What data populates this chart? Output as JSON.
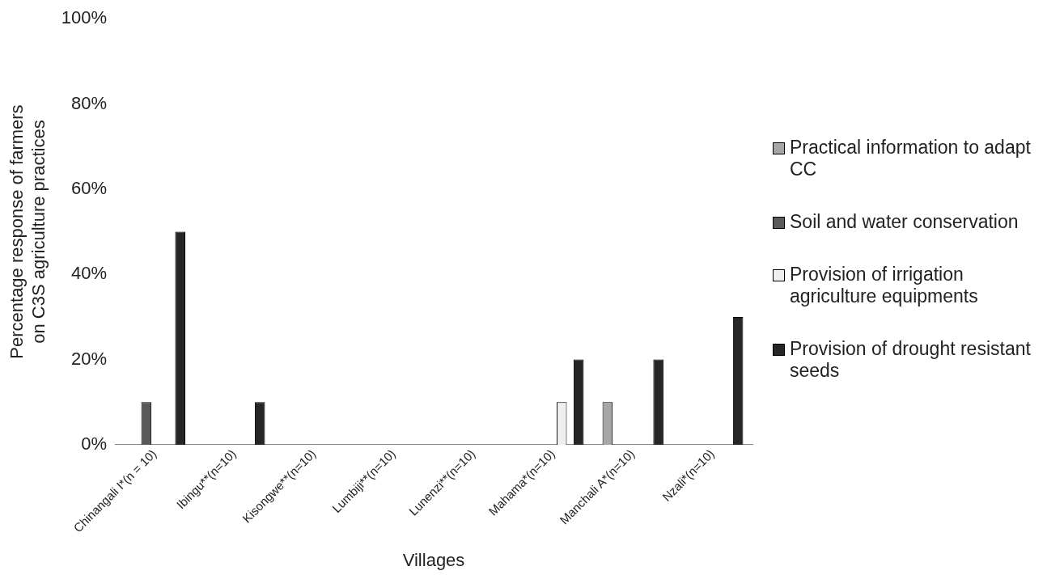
{
  "chart_data": {
    "type": "bar",
    "xlabel": "Villages",
    "ylabel": "Percentage response of farmers on C3S agriculture practices",
    "categories": [
      "Chinangali I*(n = 10)",
      "Ibingu**(n=10)",
      "Kisongwe**(n=10)",
      "Lumbiji**(n=10)",
      "Lunenzi**(n=10)",
      "Mahama*(n=10)",
      "Manchali A*(n=10)",
      "Nzali*(n=10)"
    ],
    "series": [
      {
        "name": "Practical information to adapt CC",
        "color": "#a6a6a6",
        "values": [
          0,
          0,
          0,
          0,
          0,
          0,
          10,
          0
        ]
      },
      {
        "name": "Soil and water conservation",
        "color": "#595959",
        "values": [
          10,
          0,
          0,
          0,
          0,
          0,
          0,
          0
        ]
      },
      {
        "name": "Provision of irrigation agriculture equipments",
        "color": "#eeeeee",
        "values": [
          0,
          0,
          0,
          0,
          0,
          10,
          0,
          0
        ]
      },
      {
        "name": "Provision of drought resistant seeds",
        "color": "#262626",
        "values": [
          50,
          10,
          0,
          0,
          0,
          20,
          20,
          30
        ]
      }
    ],
    "ylim": [
      0,
      100
    ],
    "yticks": [
      {
        "value": 0,
        "label": "0%"
      },
      {
        "value": 20,
        "label": "20%"
      },
      {
        "value": 40,
        "label": "40%"
      },
      {
        "value": 60,
        "label": "60%"
      },
      {
        "value": 80,
        "label": "80%"
      },
      {
        "value": 100,
        "label": "100%"
      }
    ],
    "grid": false,
    "legend": "right"
  }
}
